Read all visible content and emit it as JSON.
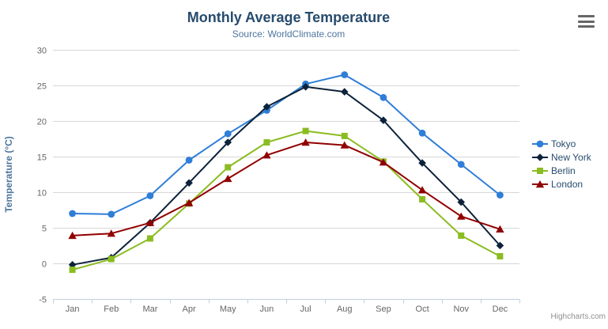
{
  "header": {
    "title": "Monthly Average Temperature",
    "subtitle": "Source: WorldClimate.com"
  },
  "credits": {
    "text": "Highcharts.com"
  },
  "colors": {
    "title": "#274b6d",
    "subtitle": "#4d759e",
    "axis_title": "#4d759e",
    "tick_label": "#666666",
    "gridline": "#d8d8d8",
    "axis_line": "#c0d0e0",
    "burger_icon": "#666666",
    "legend_text": "#274b6d",
    "credit_text": "#909090"
  },
  "chart_data": {
    "type": "line",
    "title": "Monthly Average Temperature",
    "subtitle": "Source: WorldClimate.com",
    "categories": [
      "Jan",
      "Feb",
      "Mar",
      "Apr",
      "May",
      "Jun",
      "Jul",
      "Aug",
      "Sep",
      "Oct",
      "Nov",
      "Dec"
    ],
    "series": [
      {
        "name": "Tokyo",
        "color": "#2f7ed8",
        "marker": "circle",
        "values": [
          7.0,
          6.9,
          9.5,
          14.5,
          18.2,
          21.5,
          25.2,
          26.5,
          23.3,
          18.3,
          13.9,
          9.6
        ]
      },
      {
        "name": "New York",
        "color": "#0d233a",
        "marker": "diamond",
        "values": [
          -0.2,
          0.8,
          5.7,
          11.3,
          17.0,
          22.0,
          24.8,
          24.1,
          20.1,
          14.1,
          8.6,
          2.5
        ]
      },
      {
        "name": "Berlin",
        "color": "#8bbc21",
        "marker": "square",
        "values": [
          -0.9,
          0.6,
          3.5,
          8.4,
          13.5,
          17.0,
          18.6,
          17.9,
          14.3,
          9.0,
          3.9,
          1.0
        ]
      },
      {
        "name": "London",
        "color": "#910000",
        "marker": "triangle",
        "values": [
          3.9,
          4.2,
          5.7,
          8.5,
          11.9,
          15.2,
          17.0,
          16.6,
          14.2,
          10.3,
          6.6,
          4.8
        ]
      }
    ],
    "xlabel": "",
    "ylabel": "Temperature (°C)",
    "ylim": [
      -5,
      30
    ],
    "ytick_interval": 5,
    "yticks": [
      -5,
      0,
      5,
      10,
      15,
      20,
      25,
      30
    ],
    "grid": true,
    "legend_position": "right"
  }
}
